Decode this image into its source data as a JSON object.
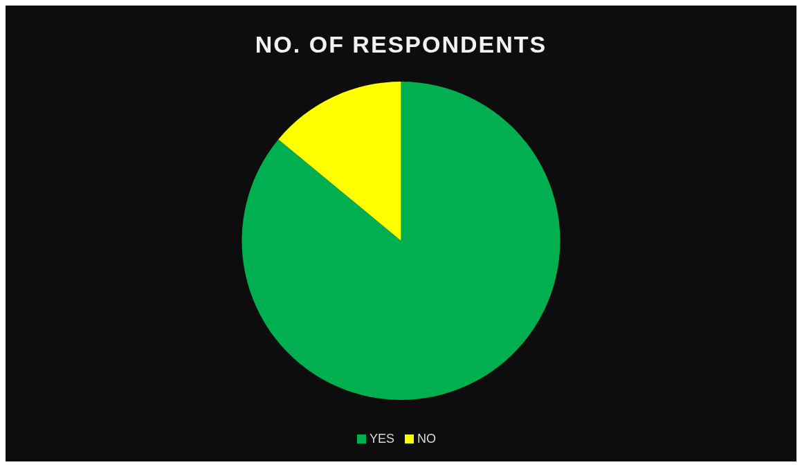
{
  "chart_data": {
    "type": "pie",
    "title": "NO. OF RESPONDENTS",
    "categories": [
      "YES",
      "NO"
    ],
    "values": [
      86,
      14
    ],
    "colors": [
      "#00b050",
      "#ffff00"
    ],
    "legend": "bottom"
  }
}
